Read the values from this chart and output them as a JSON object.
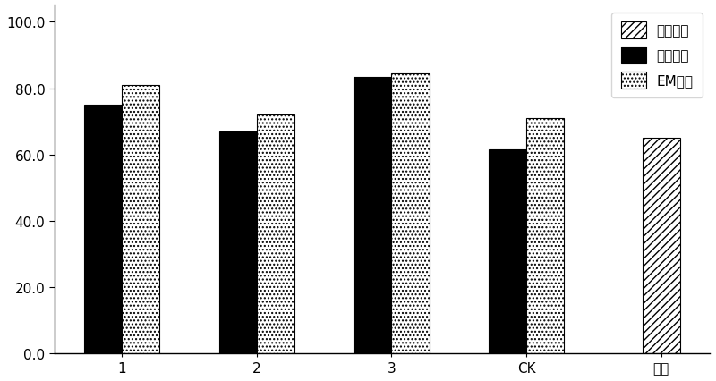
{
  "categories": [
    "1",
    "2",
    "3",
    "CK",
    "对照"
  ],
  "series": [
    {
      "name": "空白对照",
      "values": [
        null,
        null,
        null,
        null,
        65.0
      ],
      "hatch": "////",
      "facecolor": "white",
      "edgecolor": "black"
    },
    {
      "name": "固体菌剂",
      "values": [
        75.0,
        67.0,
        83.5,
        61.5,
        null
      ],
      "hatch": "xxxx",
      "facecolor": "black",
      "edgecolor": "black"
    },
    {
      "name": "EM菌剂",
      "values": [
        81.0,
        72.0,
        84.5,
        71.0,
        null
      ],
      "hatch": "....",
      "facecolor": "white",
      "edgecolor": "black"
    }
  ],
  "ylim": [
    0,
    105
  ],
  "yticks": [
    0.0,
    20.0,
    40.0,
    60.0,
    80.0,
    100.0
  ],
  "ytick_labels": [
    "0.0",
    "20.0",
    "40.0",
    "60.0",
    "80.0",
    "100.0"
  ],
  "bar_width": 0.28,
  "figure_bg": "white",
  "axes_bg": "white",
  "font_size": 11,
  "legend_font_size": 11
}
